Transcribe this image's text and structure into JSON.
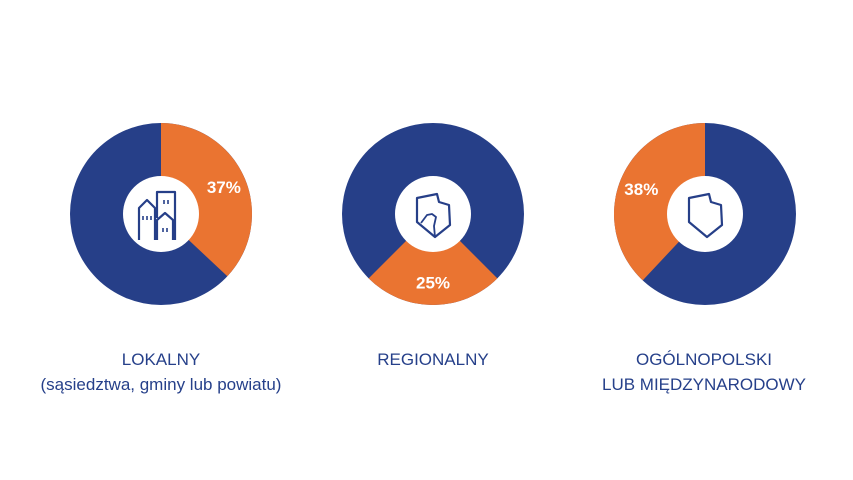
{
  "colors": {
    "primary": "#263f88",
    "highlight": "#ea7431",
    "icon_bg": "#ffffff"
  },
  "chart_data": [
    {
      "type": "pie",
      "donut": true,
      "highlight_value": 37,
      "data_label": "37%",
      "icon": "buildings-icon",
      "label_lines": [
        "LOKALNY",
        "(sąsiedztwa, gminy lub powiatu)"
      ]
    },
    {
      "type": "pie",
      "donut": true,
      "highlight_value": 25,
      "data_label": "25%",
      "icon": "region-map-icon",
      "label_lines": [
        "REGIONALNY"
      ]
    },
    {
      "type": "pie",
      "donut": true,
      "highlight_value": 38,
      "data_label": "38%",
      "icon": "poland-map-icon",
      "label_lines": [
        "OGÓLNOPOLSKI",
        "LUB MIĘDZYNARODOWY"
      ]
    }
  ]
}
